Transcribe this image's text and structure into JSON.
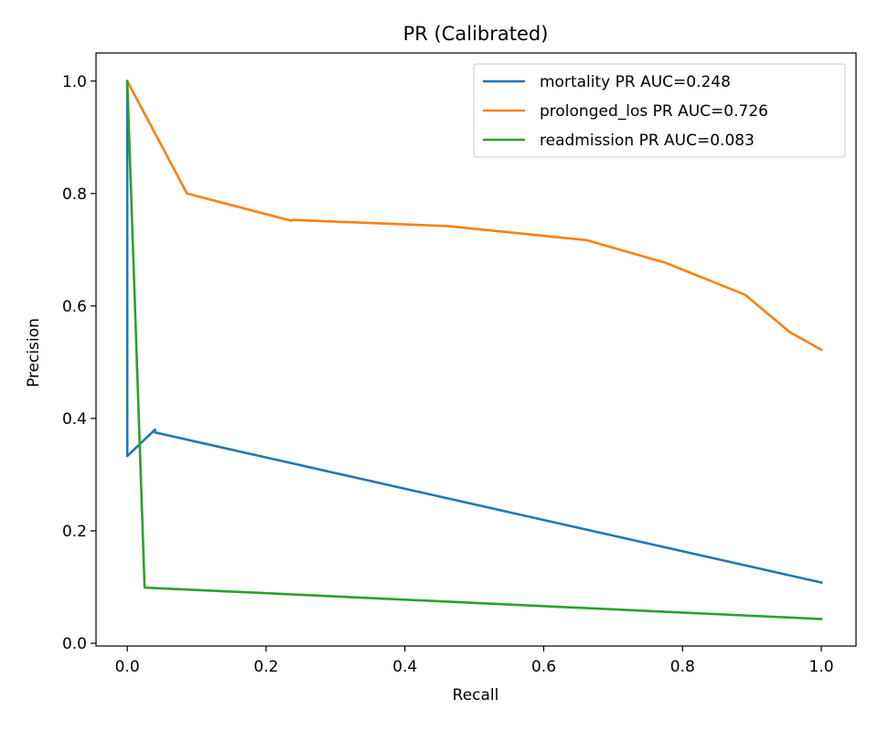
{
  "chart_data": {
    "type": "line",
    "title": "PR (Calibrated)",
    "xlabel": "Recall",
    "ylabel": "Precision",
    "xlim": [
      -0.045,
      1.05
    ],
    "ylim": [
      -0.005,
      1.05
    ],
    "xticks": [
      0.0,
      0.2,
      0.4,
      0.6,
      0.8,
      1.0
    ],
    "xtick_labels": [
      "0.0",
      "0.2",
      "0.4",
      "0.6",
      "0.8",
      "1.0"
    ],
    "yticks": [
      0.0,
      0.2,
      0.4,
      0.6,
      0.8,
      1.0
    ],
    "ytick_labels": [
      "0.0",
      "0.2",
      "0.4",
      "0.6",
      "0.8",
      "1.0"
    ],
    "grid": false,
    "legend_position": "upper right",
    "series": [
      {
        "name": "mortality PR AUC=0.248",
        "color": "#1f77b4",
        "x": [
          0.0,
          0.0,
          0.0,
          0.04,
          0.04,
          1.0
        ],
        "y": [
          1.0,
          1.0,
          0.333,
          0.38,
          0.375,
          0.108
        ]
      },
      {
        "name": "prolonged_los PR AUC=0.726",
        "color": "#ff7f0e",
        "x": [
          0.0,
          0.0,
          0.086,
          0.235,
          0.24,
          0.462,
          0.662,
          0.775,
          0.89,
          0.955,
          1.0
        ],
        "y": [
          1.0,
          1.0,
          0.8,
          0.752,
          0.753,
          0.742,
          0.717,
          0.677,
          0.62,
          0.553,
          0.522
        ]
      },
      {
        "name": "readmission PR AUC=0.083",
        "color": "#2ca02c",
        "x": [
          0.0,
          0.0,
          0.025,
          1.0
        ],
        "y": [
          1.0,
          1.0,
          0.099,
          0.043
        ]
      }
    ]
  }
}
